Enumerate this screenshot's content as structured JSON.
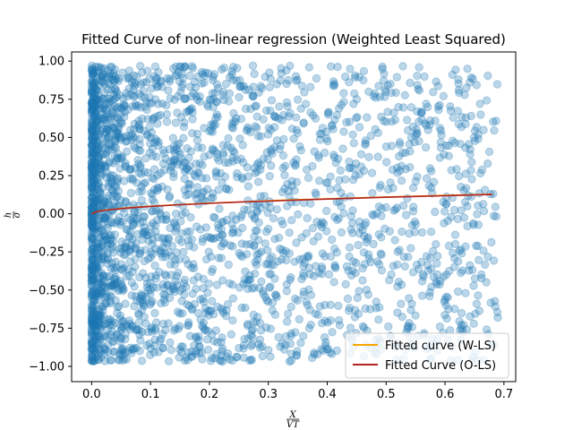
{
  "chart_data": {
    "type": "scatter",
    "title": "Fitted Curve of non-linear regression (Weighted Least Squared)",
    "xlabel": {
      "numerator": "X",
      "denominator": "VT"
    },
    "ylabel": {
      "numerator": "h",
      "denominator": "σ"
    },
    "xlim": [
      -0.034,
      0.72
    ],
    "ylim": [
      -1.1,
      1.06
    ],
    "x_ticks": [
      0.0,
      0.1,
      0.2,
      0.3,
      0.4,
      0.5,
      0.6,
      0.7
    ],
    "x_tick_labels": [
      "0.0",
      "0.1",
      "0.2",
      "0.3",
      "0.4",
      "0.5",
      "0.6",
      "0.7"
    ],
    "y_ticks": [
      -1.0,
      -0.75,
      -0.5,
      -0.25,
      0.0,
      0.25,
      0.5,
      0.75,
      1.0
    ],
    "y_tick_labels": [
      "−1.00",
      "−0.75",
      "−0.50",
      "−0.25",
      "0.00",
      "0.25",
      "0.50",
      "0.75",
      "1.00"
    ],
    "grid": false,
    "legend_position": "lower right",
    "scatter": {
      "color": "#1f77b4",
      "alpha": 0.3,
      "x_range": [
        0.0,
        0.69
      ],
      "y_range": [
        -0.97,
        0.97
      ],
      "distribution": "dense near x=0, thinning toward x=0.69; y uniform between -0.97 and 0.97"
    },
    "series": [
      {
        "name": "Fitted curve (W-LS)",
        "color": "#f5a500",
        "x": [
          0.0,
          0.01,
          0.02,
          0.04,
          0.06,
          0.08,
          0.1,
          0.15,
          0.2,
          0.25,
          0.3,
          0.35,
          0.4,
          0.45,
          0.5,
          0.55,
          0.6,
          0.65,
          0.68
        ],
        "y": [
          0.0,
          0.016,
          0.022,
          0.031,
          0.038,
          0.044,
          0.049,
          0.06,
          0.069,
          0.077,
          0.085,
          0.092,
          0.098,
          0.104,
          0.11,
          0.115,
          0.12,
          0.125,
          0.128
        ]
      },
      {
        "name": "Fitted Curve (O-LS)",
        "color": "#b22222",
        "x": [
          0.0,
          0.01,
          0.02,
          0.04,
          0.06,
          0.08,
          0.1,
          0.15,
          0.2,
          0.25,
          0.3,
          0.35,
          0.4,
          0.45,
          0.5,
          0.55,
          0.6,
          0.65,
          0.68
        ],
        "y": [
          0.0,
          0.015,
          0.021,
          0.03,
          0.037,
          0.043,
          0.048,
          0.059,
          0.068,
          0.076,
          0.083,
          0.09,
          0.096,
          0.102,
          0.108,
          0.113,
          0.118,
          0.123,
          0.126
        ]
      }
    ]
  }
}
